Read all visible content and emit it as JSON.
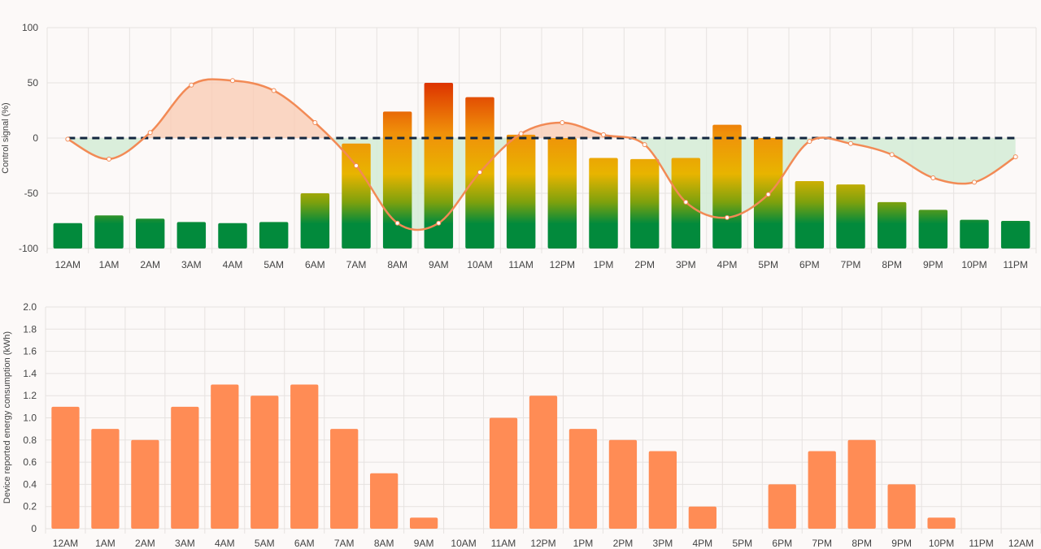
{
  "chart_data": [
    {
      "type": "bar",
      "ylabel": "Control signal (%)",
      "ylim": [
        -100,
        100
      ],
      "yticks": [
        100,
        50,
        0,
        -50,
        -100
      ],
      "grid": true,
      "categories": [
        "12AM",
        "1AM",
        "2AM",
        "3AM",
        "4AM",
        "5AM",
        "6AM",
        "7AM",
        "8AM",
        "9AM",
        "10AM",
        "11AM",
        "12PM",
        "1PM",
        "2PM",
        "3PM",
        "4PM",
        "5PM",
        "6PM",
        "7PM",
        "8PM",
        "9PM",
        "10PM",
        "11PM"
      ],
      "series": [
        {
          "type": "bar",
          "values": [
            -77,
            -70,
            -73,
            -76,
            -77,
            -76,
            -50,
            -5,
            24,
            50,
            37,
            3,
            0,
            -18,
            -19,
            -18,
            12,
            0,
            -39,
            -42,
            -58,
            -65,
            -74,
            -75
          ]
        },
        {
          "type": "line",
          "values": [
            -1,
            -19,
            5,
            48,
            52,
            43,
            14,
            -25,
            -77,
            -77,
            -31,
            4,
            14,
            3,
            -6,
            -58,
            -72,
            -51,
            -3,
            -5,
            -15,
            -36,
            -40,
            -17
          ]
        }
      ],
      "reference_line": {
        "value": 0,
        "style": "dashed"
      },
      "colors": {
        "bar_low": "#028a3c",
        "bar_mid": "#f5b000",
        "bar_high": "#dd3300",
        "line": "#f28a55",
        "fill_positive": "#f9c9b2",
        "fill_negative": "#d4ecd6",
        "reference": "#13263f"
      }
    },
    {
      "type": "bar",
      "ylabel": "Device reported energy consumption (kWh)",
      "ylim": [
        0,
        2.0
      ],
      "yticks": [
        "2.0",
        "1.8",
        "1.6",
        "1.4",
        "1.2",
        "1.0",
        "0.8",
        "0.6",
        "0.4",
        "0.2",
        "0"
      ],
      "grid": true,
      "categories": [
        "12AM",
        "1AM",
        "2AM",
        "3AM",
        "4AM",
        "5AM",
        "6AM",
        "7AM",
        "8AM",
        "9AM",
        "10AM",
        "11AM",
        "12PM",
        "1PM",
        "2PM",
        "3PM",
        "4PM",
        "5PM",
        "6PM",
        "7PM",
        "8PM",
        "9PM",
        "10PM",
        "11PM",
        "12AM"
      ],
      "values": [
        1.1,
        0.9,
        0.8,
        1.1,
        1.3,
        1.2,
        1.3,
        0.9,
        0.5,
        0.1,
        0,
        1.0,
        1.2,
        0.9,
        0.8,
        0.7,
        0.2,
        0,
        0.4,
        0.7,
        0.8,
        0.4,
        0.1,
        0,
        0
      ],
      "colors": {
        "bar": "#ff8c55"
      }
    }
  ]
}
